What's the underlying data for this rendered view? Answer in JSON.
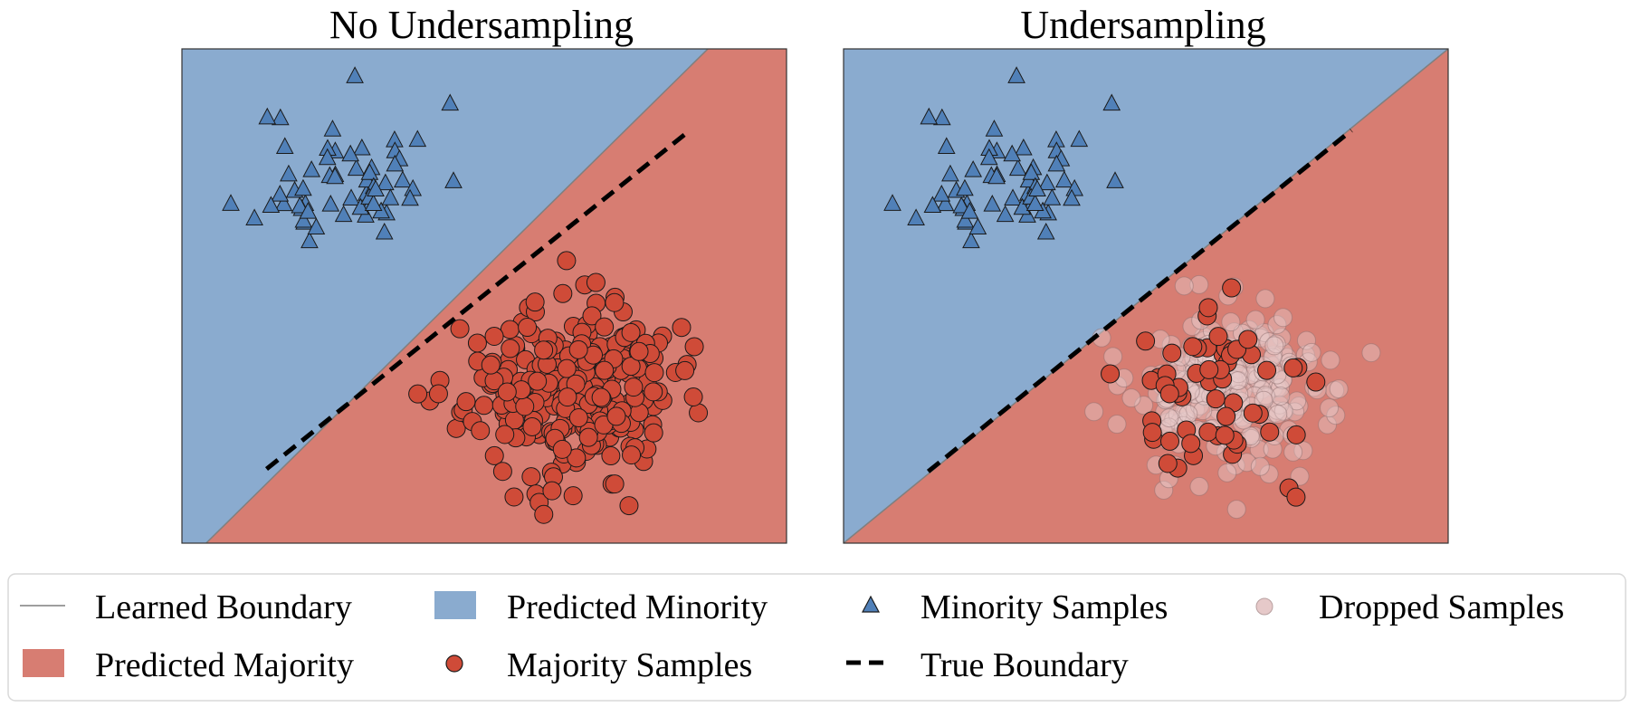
{
  "colors": {
    "minority_region": "#8aabcf",
    "majority_region": "#d77d72",
    "minority_marker": "#5080b8",
    "majority_marker": "#cf4b38",
    "dropped_marker": "#e6c9c9",
    "learned_boundary": "#7f7f7f",
    "true_boundary": "#000000"
  },
  "chart_data": [
    {
      "type": "scatter",
      "title": "No Undersampling",
      "xlim": [
        0,
        1
      ],
      "ylim": [
        0,
        1
      ],
      "learned_boundary": {
        "points": [
          [
            0.04,
            0.0
          ],
          [
            0.87,
            1.0
          ]
        ]
      },
      "true_boundary": {
        "points": [
          [
            0.14,
            0.15
          ],
          [
            0.84,
            0.835
          ]
        ]
      },
      "minority": {
        "center": [
          0.27,
          0.74
        ],
        "spread": [
          0.075,
          0.075
        ],
        "count": 60,
        "seed": 11
      },
      "majority": {
        "center": [
          0.64,
          0.31
        ],
        "spread": [
          0.085,
          0.085
        ],
        "count": 300,
        "seed": 23
      },
      "dropped": {
        "count": 0
      }
    },
    {
      "type": "scatter",
      "title": "Undersampling",
      "xlim": [
        0,
        1
      ],
      "ylim": [
        0,
        1
      ],
      "learned_boundary": {
        "points": [
          [
            0.0,
            0.0
          ],
          [
            1.0,
            1.0
          ]
        ]
      },
      "true_boundary": {
        "points": [
          [
            0.14,
            0.145
          ],
          [
            0.84,
            0.835
          ]
        ]
      },
      "minority": {
        "center": [
          0.27,
          0.74
        ],
        "spread": [
          0.075,
          0.075
        ],
        "count": 60,
        "seed": 11
      },
      "majority": {
        "center": [
          0.64,
          0.31
        ],
        "spread": [
          0.085,
          0.085
        ],
        "count": 60,
        "seed": 41
      },
      "dropped": {
        "center": [
          0.64,
          0.31
        ],
        "spread": [
          0.085,
          0.085
        ],
        "count": 240,
        "seed": 53
      }
    }
  ],
  "legend": {
    "items": [
      {
        "label": "Learned Boundary",
        "key": "learned"
      },
      {
        "label": "Predicted Minority",
        "key": "pred_min"
      },
      {
        "label": "Minority Samples",
        "key": "min_samples"
      },
      {
        "label": "Dropped Samples",
        "key": "dropped"
      },
      {
        "label": "Predicted Majority",
        "key": "pred_maj"
      },
      {
        "label": "Majority Samples",
        "key": "maj_samples"
      },
      {
        "label": "True Boundary",
        "key": "true"
      }
    ]
  }
}
